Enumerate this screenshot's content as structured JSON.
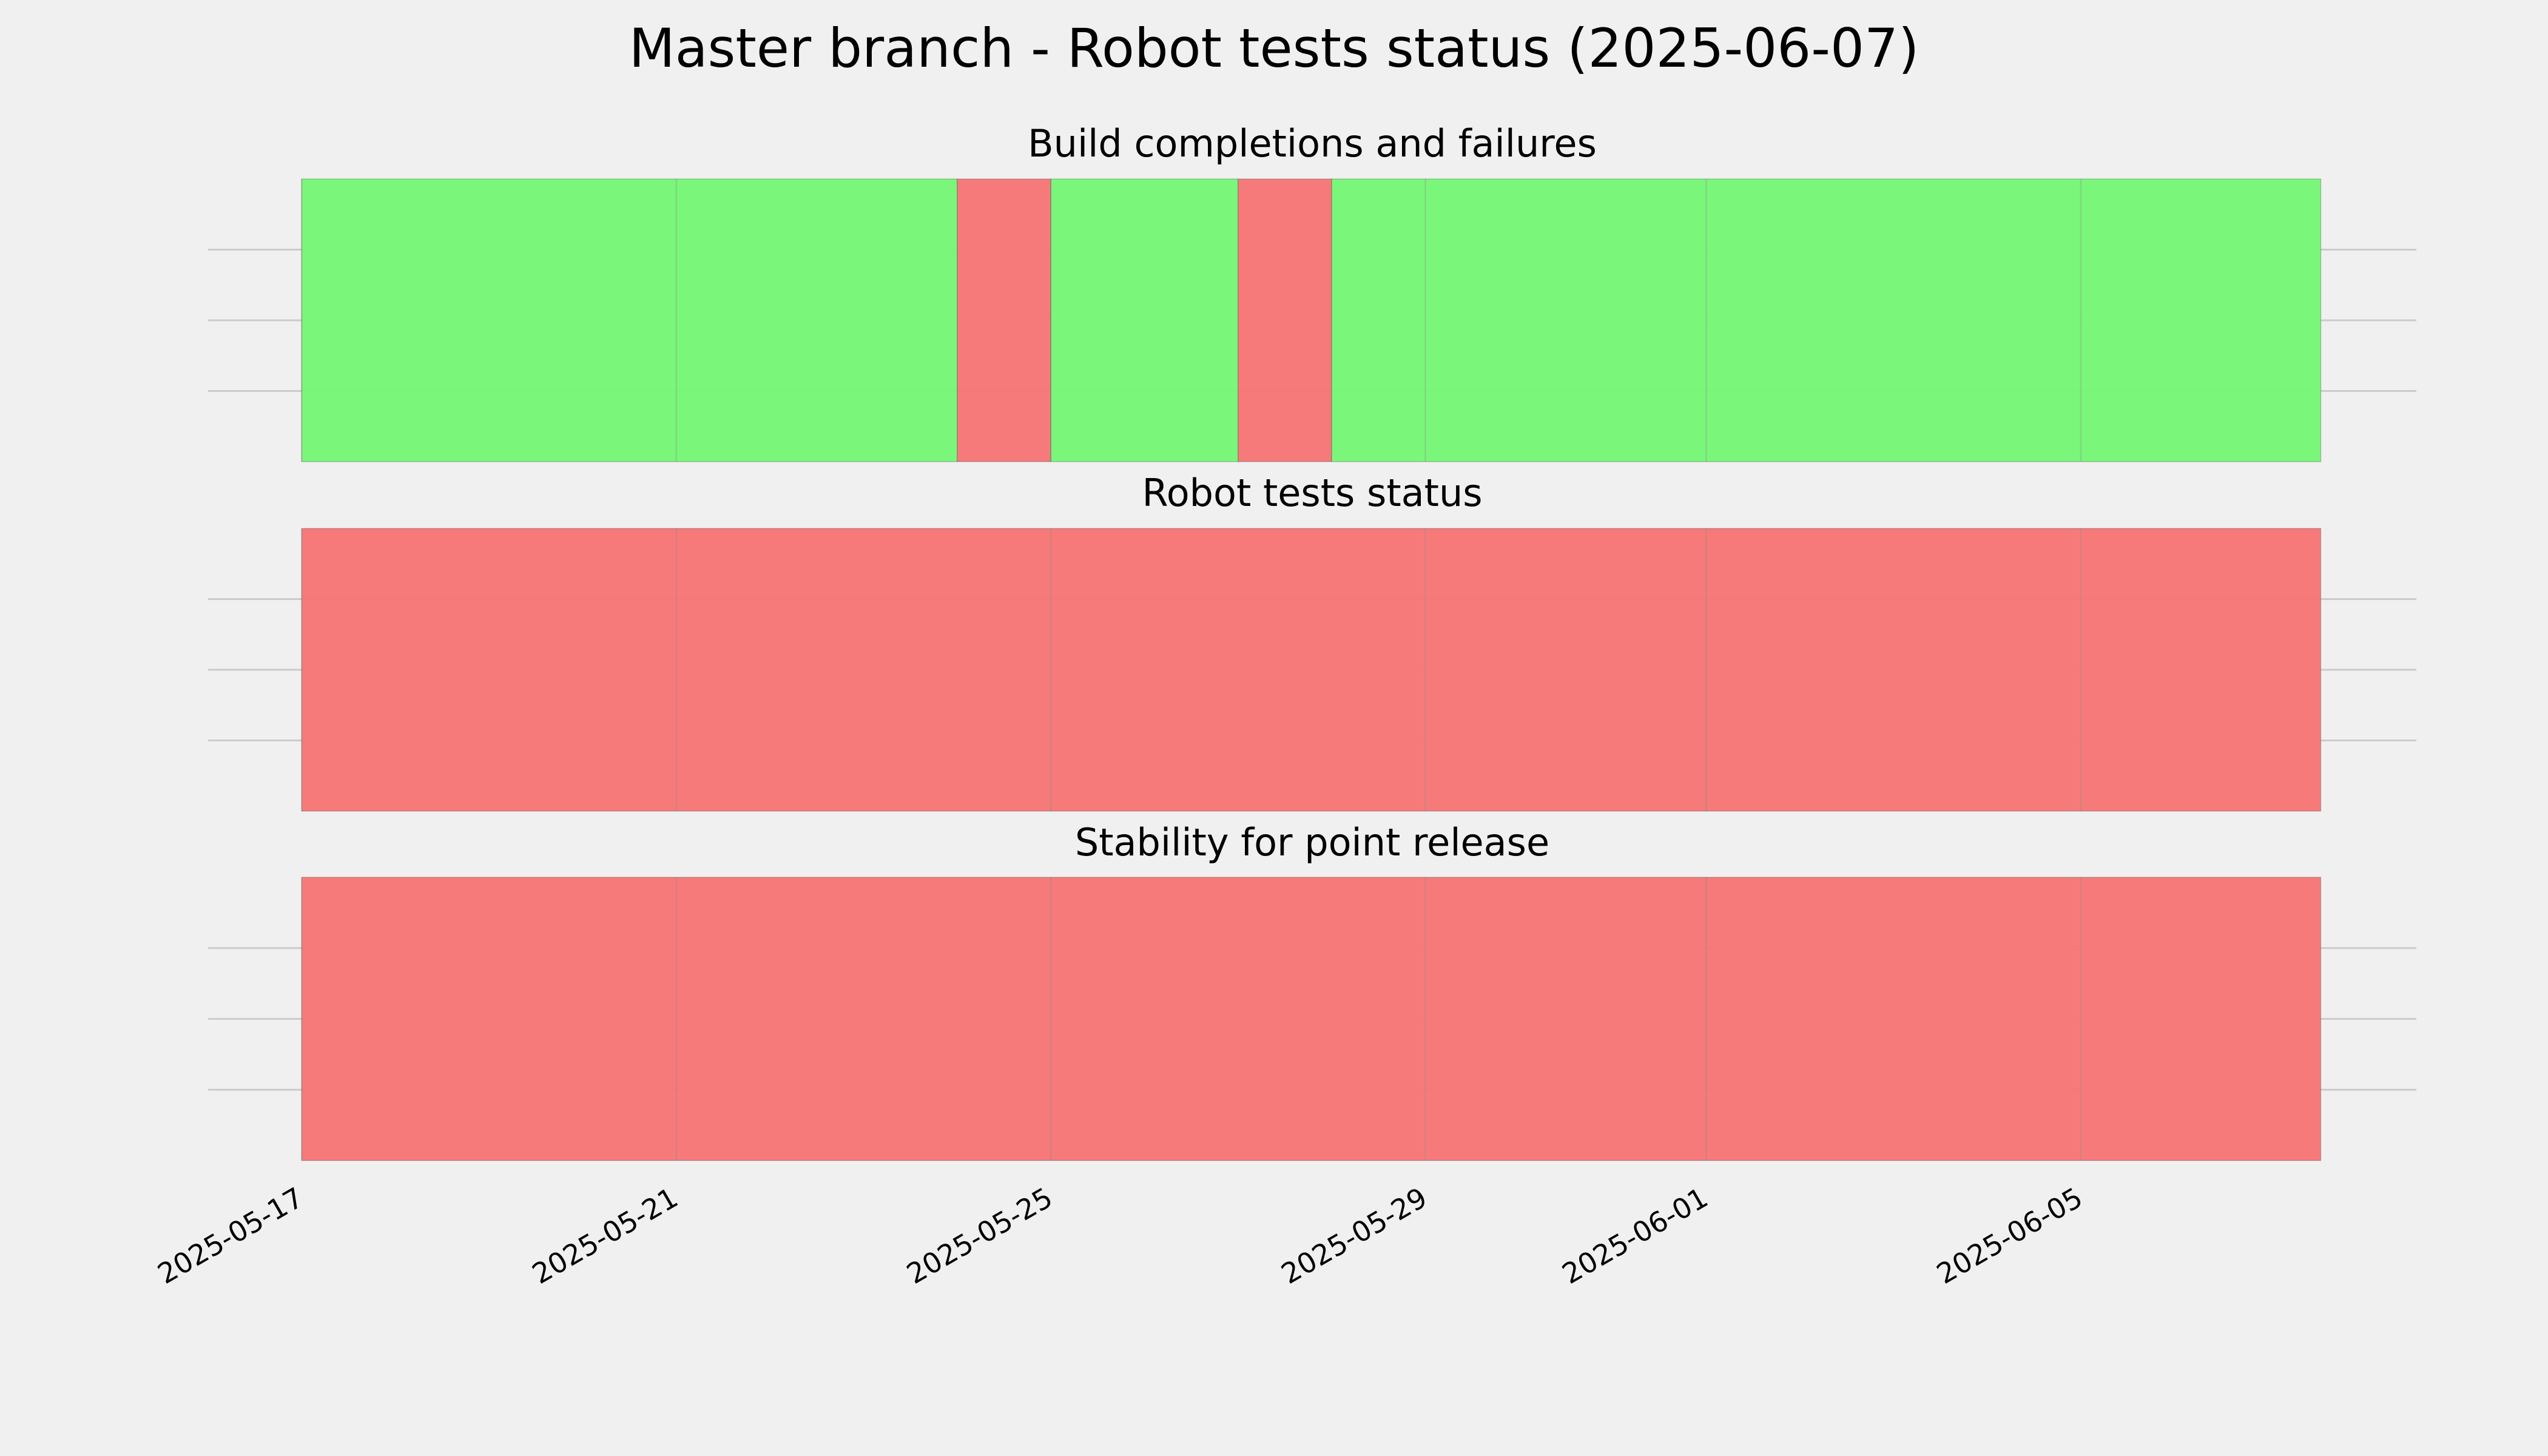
{
  "title": "Master branch - Robot tests status (2025-06-07)",
  "chart_data": [
    {
      "type": "timeline",
      "title": "Build completions and failures",
      "bins": [
        "2025-05-17",
        "2025-05-24",
        "2025-05-25",
        "2025-05-27",
        "2025-05-28",
        "2025-06-07T13:30Z"
      ],
      "colors": [
        "#76f776",
        "#f77676",
        "#76f776",
        "#f77676",
        "#76f776"
      ],
      "xlim": [
        "2025-05-16",
        "2025-06-08T14:00Z"
      ],
      "xticks": [
        "2025-05-17",
        "2025-05-21",
        "2025-05-25",
        "2025-05-29",
        "2025-06-01",
        "2025-06-05"
      ],
      "ylim": [
        0,
        1
      ],
      "yticks": [
        0.25,
        0.5,
        0.75
      ],
      "grid": true
    },
    {
      "type": "timeline",
      "title": "Robot tests status",
      "bins": [
        "2025-05-17",
        "2025-06-07T13:30Z"
      ],
      "colors": [
        "#f77676"
      ],
      "xlim": [
        "2025-05-16",
        "2025-06-08T14:00Z"
      ],
      "xticks": [
        "2025-05-17",
        "2025-05-21",
        "2025-05-25",
        "2025-05-29",
        "2025-06-01",
        "2025-06-05"
      ],
      "ylim": [
        0,
        1
      ],
      "yticks": [
        0.25,
        0.5,
        0.75
      ],
      "grid": true
    },
    {
      "type": "timeline",
      "title": "Stability for point release",
      "bins": [
        "2025-05-17",
        "2025-06-07T13:30Z"
      ],
      "colors": [
        "#f77676"
      ],
      "xlim": [
        "2025-05-16",
        "2025-06-08T14:00Z"
      ],
      "xticks": [
        "2025-05-17",
        "2025-05-21",
        "2025-05-25",
        "2025-05-29",
        "2025-06-01",
        "2025-06-05"
      ],
      "ylim": [
        0,
        1
      ],
      "yticks": [
        0.25,
        0.5,
        0.75
      ],
      "grid": true
    }
  ]
}
